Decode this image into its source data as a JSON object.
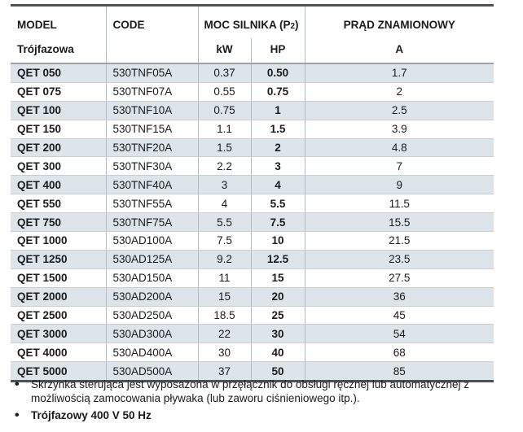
{
  "colors": {
    "stripe_row": "#dde4ea",
    "thick_border": "#4d5257",
    "header_separator": "#9ba2a8",
    "row_line": "#c8ced3",
    "column_line": "#b4bac0",
    "text": "#1b1b1b"
  },
  "table": {
    "header": {
      "model": "MODEL",
      "model_sub": "Trójfazowa",
      "code": "CODE",
      "power_pre": "MOC SILNIKA (P",
      "power_sub": "2",
      "power_post": ")",
      "current": "PRĄD ZNAMIONOWY",
      "unit_kw": "kW",
      "unit_hp": "HP",
      "unit_a": "A"
    },
    "rows": [
      {
        "model": "QET 050",
        "code": "530TNF05A",
        "kw": "0.37",
        "hp": "0.50",
        "a": "1.7"
      },
      {
        "model": "QET 075",
        "code": "530TNF07A",
        "kw": "0.55",
        "hp": "0.75",
        "a": "2"
      },
      {
        "model": "QET 100",
        "code": "530TNF10A",
        "kw": "0.75",
        "hp": "1",
        "a": "2.5"
      },
      {
        "model": "QET 150",
        "code": "530TNF15A",
        "kw": "1.1",
        "hp": "1.5",
        "a": "3.9"
      },
      {
        "model": "QET 200",
        "code": "530TNF20A",
        "kw": "1.5",
        "hp": "2",
        "a": "4.8"
      },
      {
        "model": "QET 300",
        "code": "530TNF30A",
        "kw": "2.2",
        "hp": "3",
        "a": "7"
      },
      {
        "model": "QET 400",
        "code": "530TNF40A",
        "kw": "3",
        "hp": "4",
        "a": "9"
      },
      {
        "model": "QET 550",
        "code": "530TNF55A",
        "kw": "4",
        "hp": "5.5",
        "a": "11.5"
      },
      {
        "model": "QET 750",
        "code": "530TNF75A",
        "kw": "5.5",
        "hp": "7.5",
        "a": "15.5"
      },
      {
        "model": "QET 1000",
        "code": "530AD100A",
        "kw": "7.5",
        "hp": "10",
        "a": "21.5"
      },
      {
        "model": "QET 1250",
        "code": "530AD125A",
        "kw": "9.2",
        "hp": "12.5",
        "a": "23.5"
      },
      {
        "model": "QET 1500",
        "code": "530AD150A",
        "kw": "11",
        "hp": "15",
        "a": "27.5"
      },
      {
        "model": "QET 2000",
        "code": "530AD200A",
        "kw": "15",
        "hp": "20",
        "a": "36"
      },
      {
        "model": "QET 2500",
        "code": "530AD250A",
        "kw": "18.5",
        "hp": "25",
        "a": "45"
      },
      {
        "model": "QET 3000",
        "code": "530AD300A",
        "kw": "22",
        "hp": "30",
        "a": "54"
      },
      {
        "model": "QET 4000",
        "code": "530AD400A",
        "kw": "30",
        "hp": "40",
        "a": "68"
      },
      {
        "model": "QET 5000",
        "code": "530AD500A",
        "kw": "37",
        "hp": "50",
        "a": "85"
      }
    ]
  },
  "notes": [
    {
      "text": "Skrzynka sterująca jest wyposażona w przęłącznik do obsługi ręcznej lub automatycznej z możliwością zamocowania pływaka (lub zaworu ciśnieniowego itp.).",
      "bold": false
    },
    {
      "text": "Trójfazowy 400 V 50 Hz",
      "bold": true
    }
  ]
}
